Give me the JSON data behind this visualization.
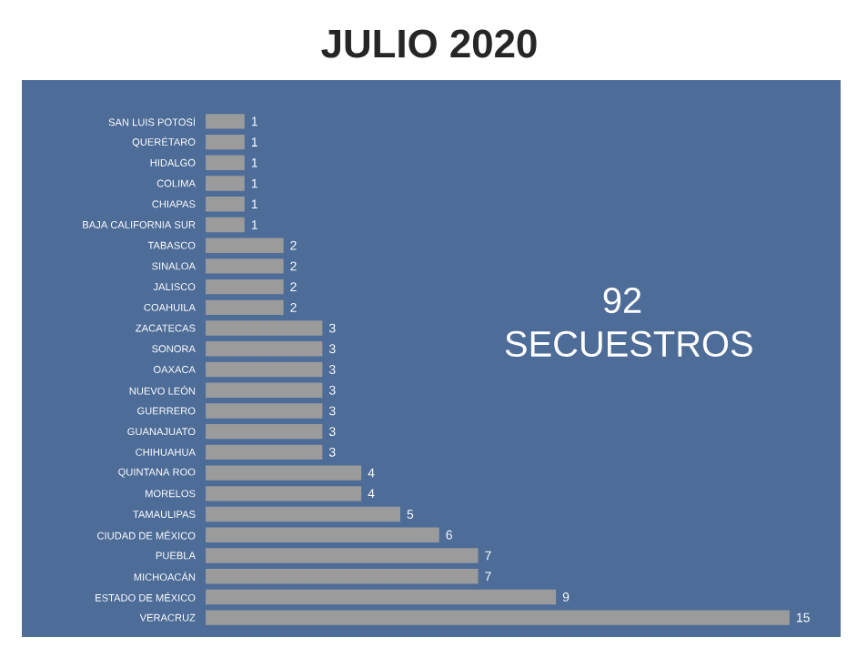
{
  "chart_data": {
    "type": "bar",
    "orientation": "horizontal",
    "title": "JULIO 2020",
    "categories": [
      "SAN LUIS POTOSÍ",
      "QUERÉTARO",
      "HIDALGO",
      "COLIMA",
      "CHIAPAS",
      "BAJA CALIFORNIA SUR",
      "TABASCO",
      "SINALOA",
      "JALISCO",
      "COAHUILA",
      "ZACATECAS",
      "SONORA",
      "OAXACA",
      "NUEVO LEÓN",
      "GUERRERO",
      "GUANAJUATO",
      "CHIHUAHUA",
      "QUINTANA ROO",
      "MORELOS",
      "TAMAULIPAS",
      "CIUDAD DE MÉXICO",
      "PUEBLA",
      "MICHOACÁN",
      "ESTADO DE MÉXICO",
      "VERACRUZ"
    ],
    "values": [
      1,
      1,
      1,
      1,
      1,
      1,
      2,
      2,
      2,
      2,
      3,
      3,
      3,
      3,
      3,
      3,
      3,
      4,
      4,
      5,
      6,
      7,
      7,
      9,
      15
    ],
    "color": "#9b9b9b",
    "data_labels": true,
    "annotations": [
      "92 SECUESTROS"
    ]
  }
}
